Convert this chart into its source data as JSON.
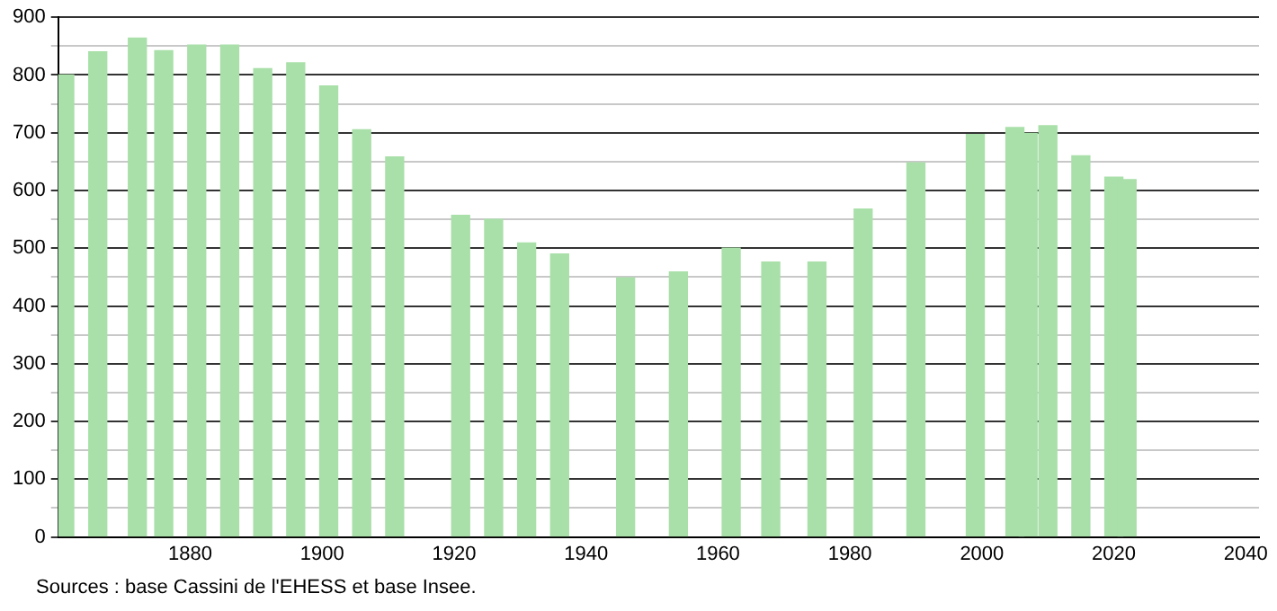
{
  "chart_data": {
    "type": "bar",
    "x": [
      1861,
      1866,
      1872,
      1876,
      1881,
      1886,
      1891,
      1896,
      1901,
      1906,
      1911,
      1921,
      1926,
      1931,
      1936,
      1946,
      1954,
      1962,
      1968,
      1975,
      1982,
      1990,
      1999,
      2005,
      2007,
      2010,
      2015,
      2020,
      2022
    ],
    "values": [
      800,
      840,
      864,
      842,
      852,
      852,
      811,
      821,
      781,
      705,
      658,
      557,
      550,
      509,
      490,
      449,
      459,
      500,
      476,
      476,
      568,
      648,
      697,
      709,
      699,
      712,
      660,
      623,
      619
    ],
    "color": "#a9dfa9",
    "xlim": [
      1860,
      2042
    ],
    "xticks": [
      1880,
      1900,
      1920,
      1940,
      1960,
      1980,
      2000,
      2020,
      2040
    ],
    "ylim": [
      0,
      900
    ],
    "yticks": [
      0,
      {
        "value": 50,
        "label": null
      },
      100,
      {
        "value": 150,
        "label": null
      },
      200,
      {
        "value": 250,
        "label": null
      },
      300,
      {
        "value": 350,
        "label": null
      },
      400,
      {
        "value": 450,
        "label": null
      },
      500,
      {
        "value": 550,
        "label": null
      },
      600,
      {
        "value": 650,
        "label": null
      },
      700,
      {
        "value": 750,
        "label": null
      },
      800,
      {
        "value": 850,
        "label": null
      },
      900
    ],
    "grid": "y",
    "annotations": [
      "Sources : base Cassini de l'EHESS et base Insee."
    ]
  }
}
